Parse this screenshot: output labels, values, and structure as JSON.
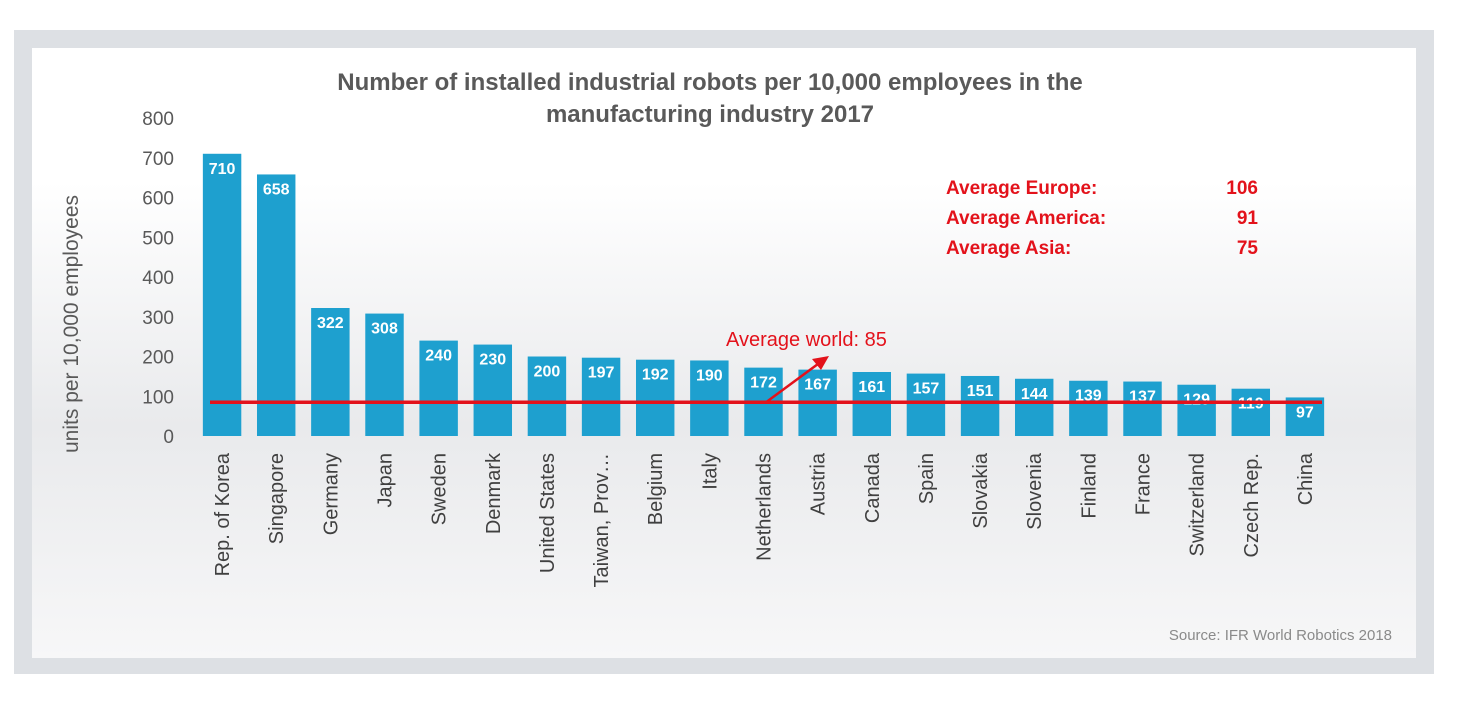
{
  "chart_data": {
    "type": "bar",
    "title": "Number of installed industrial robots per 10,000 employees in the manufacturing industry 2017",
    "title_lines": [
      "Number of installed industrial robots per 10,000 employees in the",
      "manufacturing industry 2017"
    ],
    "xlabel": "",
    "ylabel": "units per 10,000 employees",
    "ylim": [
      0,
      800
    ],
    "yticks": [
      0,
      100,
      200,
      300,
      400,
      500,
      600,
      700,
      800
    ],
    "grid": false,
    "bar_color": "#1ea0cf",
    "categories": [
      "Rep. of Korea",
      "Singapore",
      "Germany",
      "Japan",
      "Sweden",
      "Denmark",
      "United States",
      "Taiwan, Prov…",
      "Belgium",
      "Italy",
      "Netherlands",
      "Austria",
      "Canada",
      "Spain",
      "Slovakia",
      "Slovenia",
      "Finland",
      "France",
      "Switzerland",
      "Czech Rep.",
      "China"
    ],
    "values": [
      710,
      658,
      322,
      308,
      240,
      230,
      200,
      197,
      192,
      190,
      172,
      167,
      161,
      157,
      151,
      144,
      139,
      137,
      129,
      119,
      97
    ],
    "reference_line": {
      "label": "Average world: 85",
      "value": 85,
      "color": "#e3121b"
    },
    "regional_averages": [
      {
        "label": "Average Europe:",
        "value": "106"
      },
      {
        "label": "Average America:",
        "value": "91"
      },
      {
        "label": "Average Asia:",
        "value": "75"
      }
    ],
    "source": "Source: IFR World Robotics 2018"
  }
}
